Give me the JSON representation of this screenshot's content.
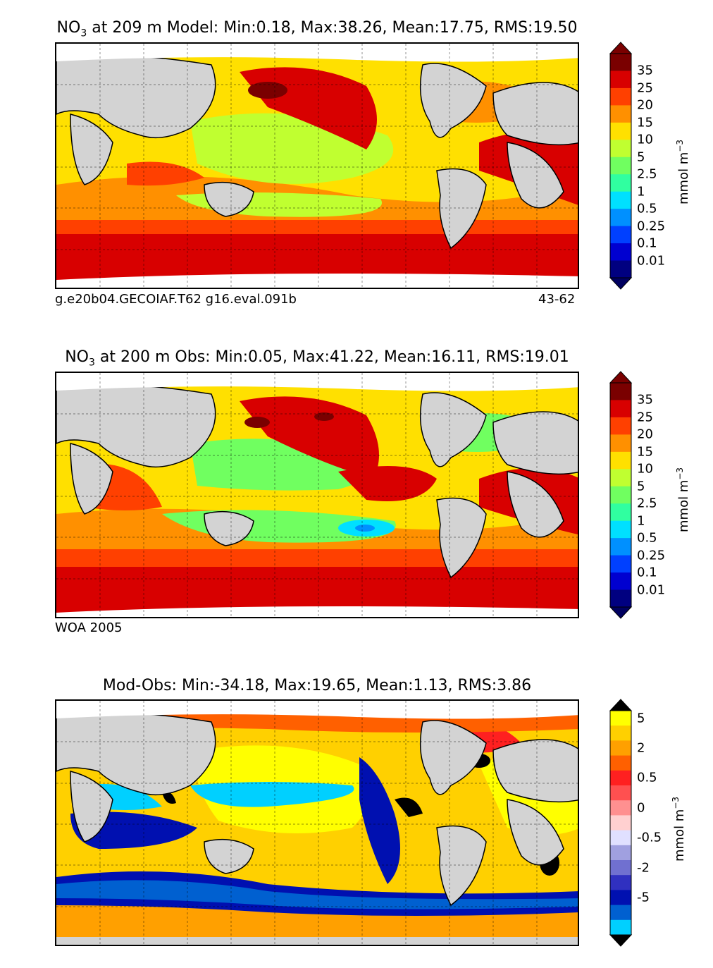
{
  "chart_data": [
    {
      "type": "heatmap",
      "title_prefix": "NO",
      "title_sub": "3",
      "title_suffix": " at 209 m Model: Min:0.18, Max:38.26, Mean:17.75, RMS:19.50",
      "caption_left": "g.e20b04.GECOIAF.T62 g16.eval.091b",
      "caption_right": "43-62",
      "colorbar_ticks": [
        "35",
        "25",
        "20",
        "15",
        "10",
        "5",
        "2.5",
        "1",
        "0.5",
        "0.25",
        "0.1",
        "0.01"
      ],
      "colorbar_colors": [
        "#7a0000",
        "#d80000",
        "#ff4000",
        "#ff9000",
        "#ffe000",
        "#c0ff30",
        "#70ff60",
        "#30ffa0",
        "#00e0ff",
        "#0090ff",
        "#0040ff",
        "#0000d0",
        "#000080"
      ],
      "arrow_top": "#7a0000",
      "arrow_bottom": "#000060",
      "unit_label": "mmol m",
      "unit_exp": "−3",
      "min": 0.18,
      "max": 38.26,
      "mean": 17.75,
      "rms": 19.5
    },
    {
      "type": "heatmap",
      "title_prefix": "NO",
      "title_sub": "3",
      "title_suffix": " at 200 m Obs: Min:0.05, Max:41.22, Mean:16.11, RMS:19.01",
      "caption_left": "WOA 2005",
      "caption_right": "",
      "colorbar_ticks": [
        "35",
        "25",
        "20",
        "15",
        "10",
        "5",
        "2.5",
        "1",
        "0.5",
        "0.25",
        "0.1",
        "0.01"
      ],
      "colorbar_colors": [
        "#7a0000",
        "#d80000",
        "#ff4000",
        "#ff9000",
        "#ffe000",
        "#c0ff30",
        "#70ff60",
        "#30ffa0",
        "#00e0ff",
        "#0090ff",
        "#0040ff",
        "#0000d0",
        "#000080"
      ],
      "arrow_top": "#7a0000",
      "arrow_bottom": "#000060",
      "unit_label": "mmol m",
      "unit_exp": "−3",
      "min": 0.05,
      "max": 41.22,
      "mean": 16.11,
      "rms": 19.01
    },
    {
      "type": "heatmap",
      "title_prefix": "Mod-Obs: Min:-34.18, Max:19.65, Mean:1.13, RMS:3.86",
      "title_sub": "",
      "title_suffix": "",
      "caption_left": "",
      "caption_right": "",
      "colorbar_ticks": [
        "5",
        "2",
        "0.5",
        "0",
        "-0.5",
        "-2",
        "-5"
      ],
      "colorbar_tick_index": [
        0.5,
        2.5,
        4.5,
        6.5,
        8.5,
        10.5,
        12.5
      ],
      "colorbar_colors": [
        "#ffff00",
        "#ffd000",
        "#ffa000",
        "#ff6000",
        "#ff2020",
        "#ff5050",
        "#ff9090",
        "#ffd0d0",
        "#e0e0ff",
        "#a0a0e0",
        "#7070d0",
        "#3030c0",
        "#0010b0",
        "#0060d0",
        "#00d0ff"
      ],
      "arrow_top": "#000000",
      "arrow_bottom": "#000000",
      "unit_label": "mmol m",
      "unit_exp": "−3",
      "min": -34.18,
      "max": 19.65,
      "mean": 1.13,
      "rms": 3.86
    }
  ]
}
